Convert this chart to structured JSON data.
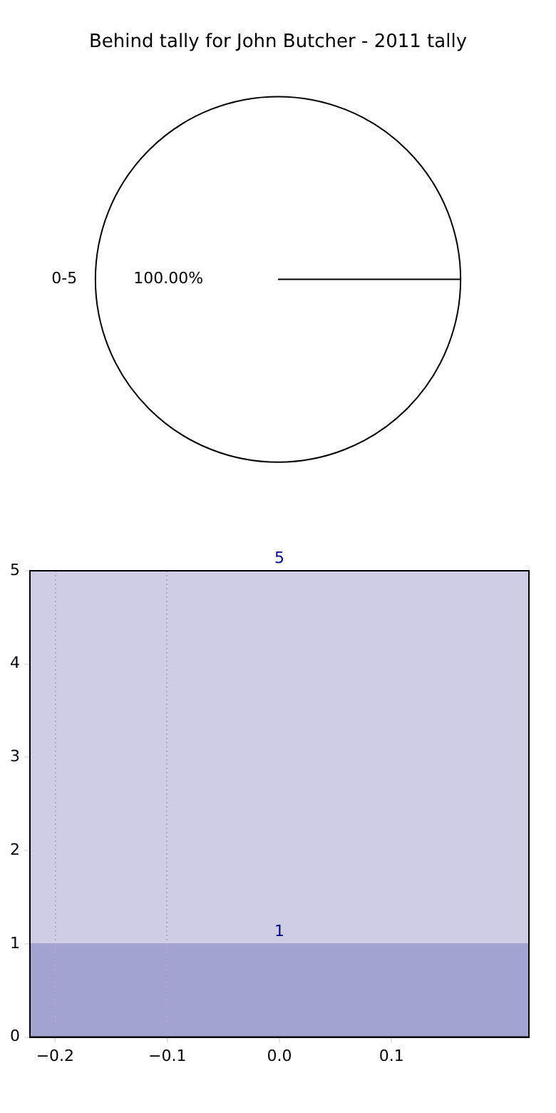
{
  "chart_data": [
    {
      "type": "pie",
      "title": "Behind tally for John Butcher - 2011 tally",
      "categories": [
        "0-5"
      ],
      "values": [
        100
      ],
      "colors": [
        "#ffffff"
      ],
      "value_labels": [
        "100.00%"
      ]
    },
    {
      "type": "area",
      "xlim": [
        -0.2225,
        0.2225
      ],
      "ylim": [
        0,
        5
      ],
      "xticks": [
        {
          "value": -0.2,
          "label": "−0.2"
        },
        {
          "value": -0.1,
          "label": "−0.1"
        },
        {
          "value": 0,
          "label": "0.0"
        },
        {
          "value": 0.1,
          "label": "0.1"
        }
      ],
      "yticks": [
        0,
        1,
        2,
        3,
        4,
        5
      ],
      "legend": false,
      "marker": "none",
      "series": [
        {
          "color": "#cdcde5",
          "x": [
            -0.2225,
            0,
            0.2225
          ],
          "values": [
            5,
            5,
            5
          ],
          "value_labels": [
            null,
            "5",
            null
          ]
        },
        {
          "color": "#a3a3d0",
          "x": [
            -0.2225,
            0,
            0.2225
          ],
          "values": [
            1,
            1,
            1
          ],
          "value_labels": [
            null,
            "1",
            null
          ]
        }
      ],
      "ref_lines": [
        {
          "axis": "x",
          "value": -0.2,
          "color": "#aaaacc",
          "line_style": "dotted"
        },
        {
          "axis": "x",
          "value": -0.1,
          "color": "#aaaacc",
          "line_style": "dotted"
        }
      ]
    }
  ]
}
